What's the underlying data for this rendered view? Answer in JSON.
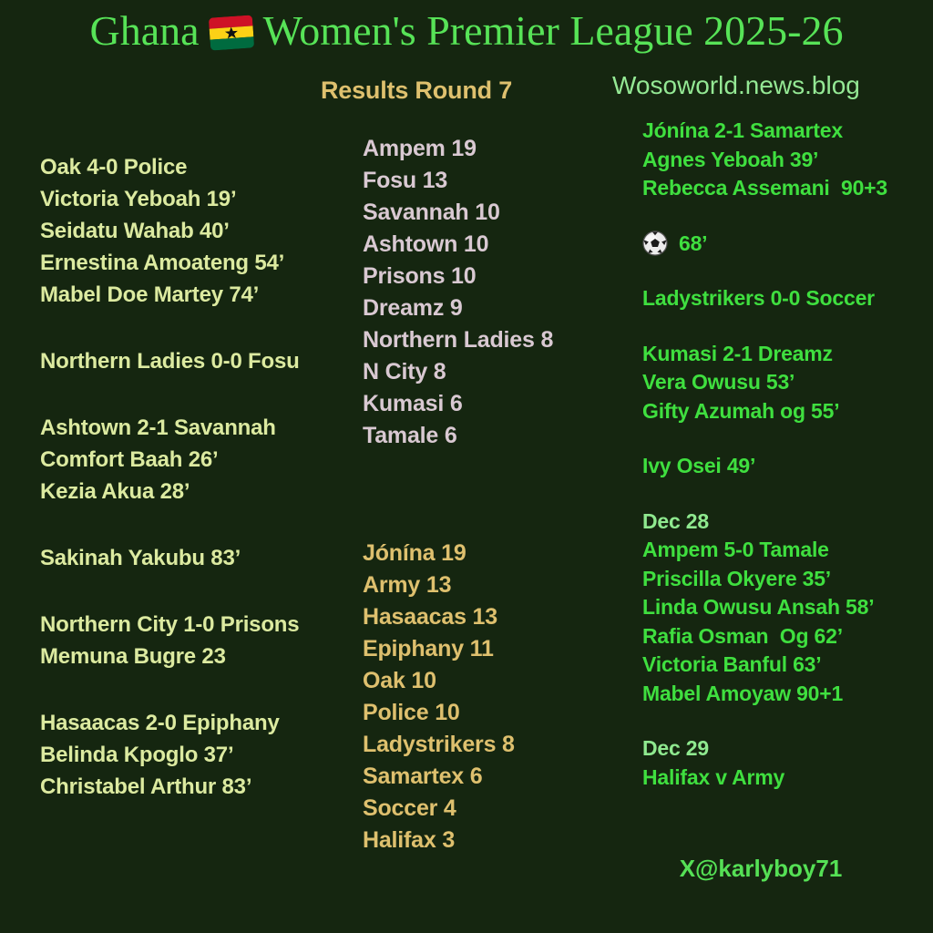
{
  "colors": {
    "background": "#152610",
    "title": "#57e357",
    "site": "#94e894",
    "gold": "#dec06e",
    "left_text": "#dceaa0",
    "standings_a": "#d9c9d2",
    "right_text": "#3fdf3f",
    "date_text": "#8fe98f",
    "footer": "#55e055",
    "flag_red": "#ce1126",
    "flag_gold": "#fcd116",
    "flag_green": "#006b3f"
  },
  "header": {
    "title_prefix": "Ghana",
    "title_suffix": "Women's Premier League 2025-26",
    "flag_icon": "ghana-flag-icon",
    "results_label": "Results Round 7",
    "site": "Wosoworld.news.blog"
  },
  "left_column": {
    "groups": [
      [
        "Oak 4-0 Police",
        "Victoria Yeboah 19’",
        "Seidatu Wahab 40’",
        "Ernestina Amoateng 54’",
        "Mabel Doe Martey 74’"
      ],
      [
        "Northern Ladies 0-0 Fosu"
      ],
      [
        "Ashtown 2-1 Savannah",
        "Comfort Baah 26’",
        "Kezia Akua 28’"
      ],
      [
        "Sakinah Yakubu 83’"
      ],
      [
        "Northern City 1-0 Prisons",
        "Memuna Bugre 23"
      ],
      [
        "Hasaacas 2-0 Epiphany",
        "Belinda Kpoglo 37’",
        "Christabel Arthur 83’"
      ]
    ]
  },
  "standings": {
    "table_a": [
      {
        "team": "Ampem",
        "pts": 19
      },
      {
        "team": "Fosu",
        "pts": 13
      },
      {
        "team": "Savannah",
        "pts": 10
      },
      {
        "team": "Ashtown",
        "pts": 10
      },
      {
        "team": "Prisons",
        "pts": 10
      },
      {
        "team": "Dreamz",
        "pts": 9
      },
      {
        "team": "Northern Ladies",
        "pts": 8
      },
      {
        "team": "N City",
        "pts": 8
      },
      {
        "team": "Kumasi",
        "pts": 6
      },
      {
        "team": "Tamale",
        "pts": 6
      }
    ],
    "table_b": [
      {
        "team": "Jónína",
        "pts": 19
      },
      {
        "team": "Army",
        "pts": 13
      },
      {
        "team": "Hasaacas",
        "pts": 13
      },
      {
        "team": "Epiphany",
        "pts": 11
      },
      {
        "team": "Oak",
        "pts": 10
      },
      {
        "team": "Police",
        "pts": 10
      },
      {
        "team": "Ladystrikers",
        "pts": 8
      },
      {
        "team": "Samartex",
        "pts": 6
      },
      {
        "team": "Soccer",
        "pts": 4
      },
      {
        "team": "Halifax",
        "pts": 3
      }
    ]
  },
  "right_column": {
    "groups": [
      {
        "lines": [
          {
            "text": "Jónína 2-1 Samartex"
          },
          {
            "text": "Agnes Yeboah 39’"
          },
          {
            "text": "Rebecca Assemani  90+3"
          }
        ]
      },
      {
        "lines": [
          {
            "text": "68’",
            "icon": "soccer-ball-icon"
          }
        ]
      },
      {
        "lines": [
          {
            "text": "Ladystrikers 0-0 Soccer"
          }
        ]
      },
      {
        "lines": [
          {
            "text": "Kumasi 2-1 Dreamz"
          },
          {
            "text": "Vera Owusu 53’"
          },
          {
            "text": "Gifty Azumah og 55’"
          }
        ]
      },
      {
        "lines": [
          {
            "text": "Ivy Osei 49’"
          }
        ]
      },
      {
        "lines": [
          {
            "text": "Dec 28",
            "date": true
          },
          {
            "text": "Ampem 5-0 Tamale"
          },
          {
            "text": "Priscilla Okyere 35’"
          },
          {
            "text": "Linda Owusu Ansah 58’"
          },
          {
            "text": "Rafia Osman  Og 62’"
          },
          {
            "text": "Victoria Banful 63’"
          },
          {
            "text": "Mabel Amoyaw 90+1"
          }
        ]
      },
      {
        "lines": [
          {
            "text": "Dec 29",
            "date": true
          },
          {
            "text": "Halifax v Army"
          }
        ]
      }
    ]
  },
  "footer": {
    "handle": "X@karlyboy71"
  }
}
